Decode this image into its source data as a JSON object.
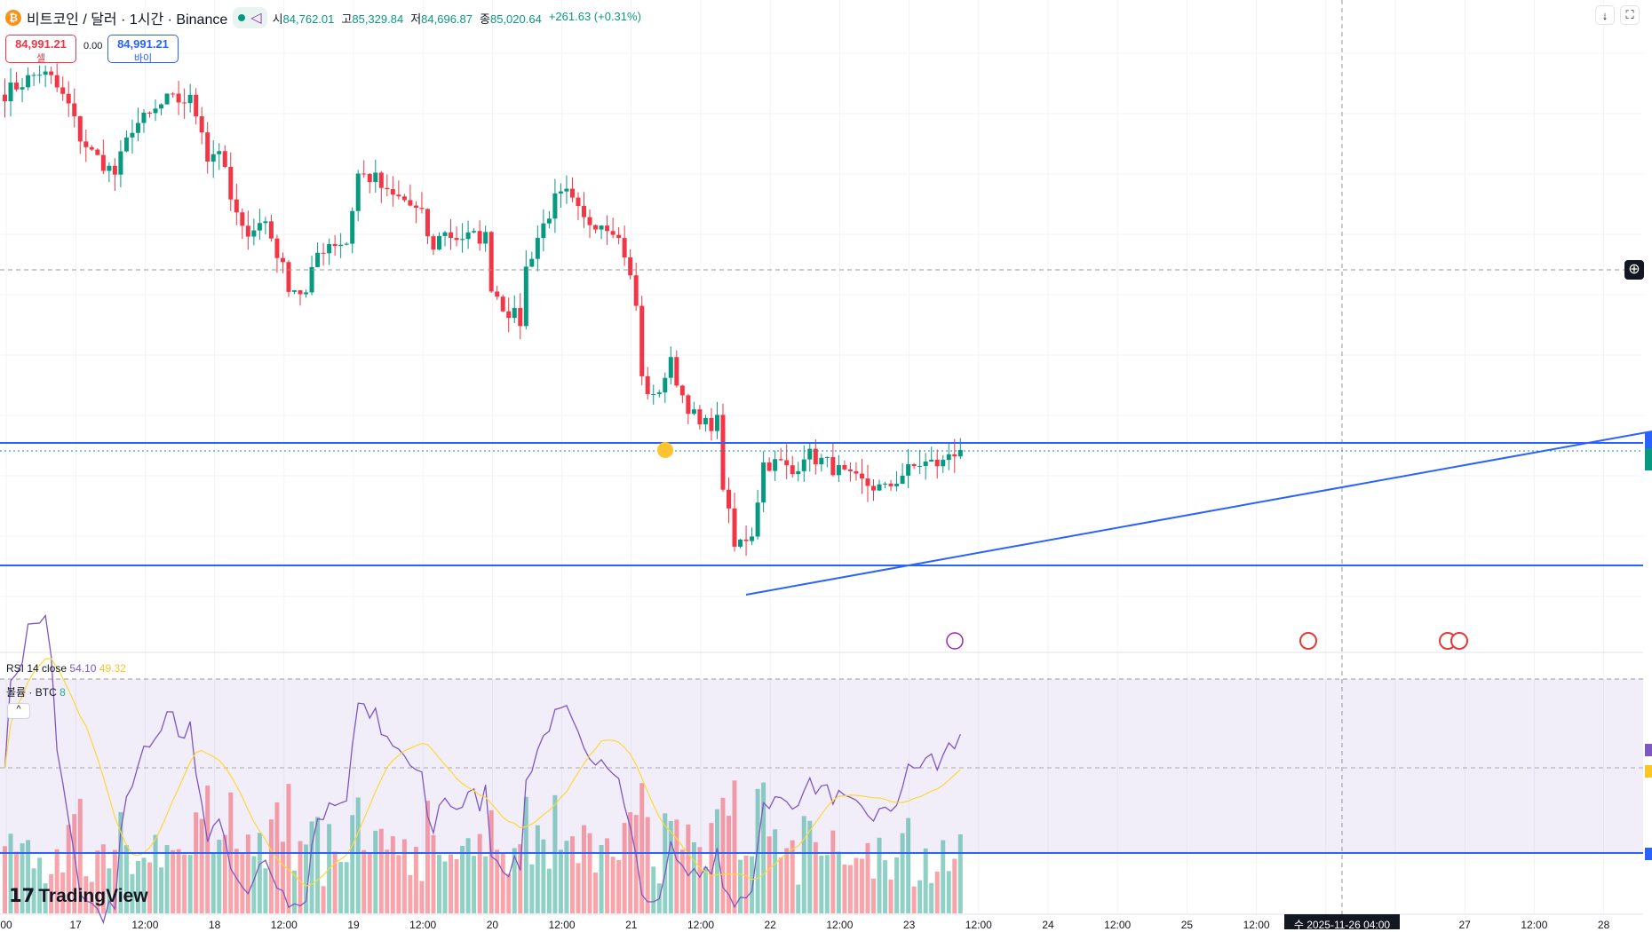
{
  "header": {
    "symbol": "비트코인 / 달러 · 1시간 · Binance",
    "coin_icon": "bitcoin-icon",
    "open_label": "시",
    "open": "84,762.01",
    "high_label": "고",
    "high": "85,329.84",
    "low_label": "저",
    "low": "84,696.87",
    "close_label": "종",
    "close": "85,020.64",
    "change": "+261.63 (+0.31%)"
  },
  "trade": {
    "sell_price": "84,991.21",
    "sell_label": "셀",
    "spread": "0.00",
    "buy_price": "84,991.21",
    "buy_label": "바이"
  },
  "toolbar": {
    "download_icon": "↓",
    "fullscreen_icon": "⛶"
  },
  "indicators": {
    "rsi_label": "RSI 14 close",
    "rsi_value": "54.10",
    "rsi_ma": "49.32",
    "volume_label": "볼륨 · BTC",
    "volume_value": "8",
    "collapse": "^"
  },
  "xaxis": {
    "labels": [
      "00",
      "17",
      "12:00",
      "18",
      "12:00",
      "19",
      "12:00",
      "20",
      "12:00",
      "21",
      "12:00",
      "22",
      "12:00",
      "23",
      "12:00",
      "24",
      "12:00",
      "25",
      "12:00",
      "",
      "",
      "27",
      "12:00",
      "28"
    ],
    "cursor_date": "수 2025-11-26  04:00"
  },
  "brand": "TradingView",
  "colors": {
    "up": "#089981",
    "down": "#f23645",
    "line": "#2962ff",
    "rsi": "#7e57c2",
    "rsi_ma": "#fdd835"
  },
  "chart_data": {
    "type": "candlestick",
    "timeframe": "1h",
    "last_price": 84991.21,
    "anchors": [
      [
        0,
        95871
      ],
      [
        6,
        96511
      ],
      [
        8,
        96287
      ],
      [
        11,
        95487
      ],
      [
        13,
        94527
      ],
      [
        15,
        94047
      ],
      [
        19,
        93407
      ],
      [
        22,
        94847
      ],
      [
        25,
        95167
      ],
      [
        28,
        95647
      ],
      [
        32,
        95647
      ],
      [
        34,
        94847
      ],
      [
        35,
        93887
      ],
      [
        37,
        94207
      ],
      [
        39,
        92607
      ],
      [
        41,
        91647
      ],
      [
        45,
        91967
      ],
      [
        47,
        91007
      ],
      [
        49,
        90047
      ],
      [
        52,
        89727
      ],
      [
        54,
        91007
      ],
      [
        56,
        91327
      ],
      [
        59,
        91327
      ],
      [
        61,
        93407
      ],
      [
        64,
        93247
      ],
      [
        66,
        92767
      ],
      [
        69,
        92607
      ],
      [
        72,
        92127
      ],
      [
        74,
        91007
      ],
      [
        75,
        91647
      ],
      [
        78,
        91487
      ],
      [
        83,
        91487
      ],
      [
        84,
        90047
      ],
      [
        86,
        89407
      ],
      [
        89,
        88927
      ],
      [
        90,
        90527
      ],
      [
        92,
        91487
      ],
      [
        95,
        92607
      ],
      [
        97,
        92767
      ],
      [
        100,
        91967
      ],
      [
        103,
        91967
      ],
      [
        105,
        91807
      ],
      [
        107,
        91007
      ],
      [
        109,
        89407
      ],
      [
        110,
        87167
      ],
      [
        112,
        86527
      ],
      [
        115,
        87647
      ],
      [
        117,
        86687
      ],
      [
        120,
        85727
      ],
      [
        123,
        85887
      ],
      [
        124,
        83967
      ],
      [
        126,
        82047
      ],
      [
        129,
        82527
      ],
      [
        131,
        84607
      ],
      [
        134,
        84607
      ],
      [
        136,
        84287
      ],
      [
        138,
        84927
      ],
      [
        142,
        84607
      ],
      [
        146,
        84127
      ],
      [
        149,
        83967
      ],
      [
        152,
        83807
      ],
      [
        155,
        84287
      ],
      [
        158,
        84607
      ],
      [
        162,
        84607
      ],
      [
        163,
        84927
      ],
      [
        165,
        85020
      ]
    ]
  }
}
